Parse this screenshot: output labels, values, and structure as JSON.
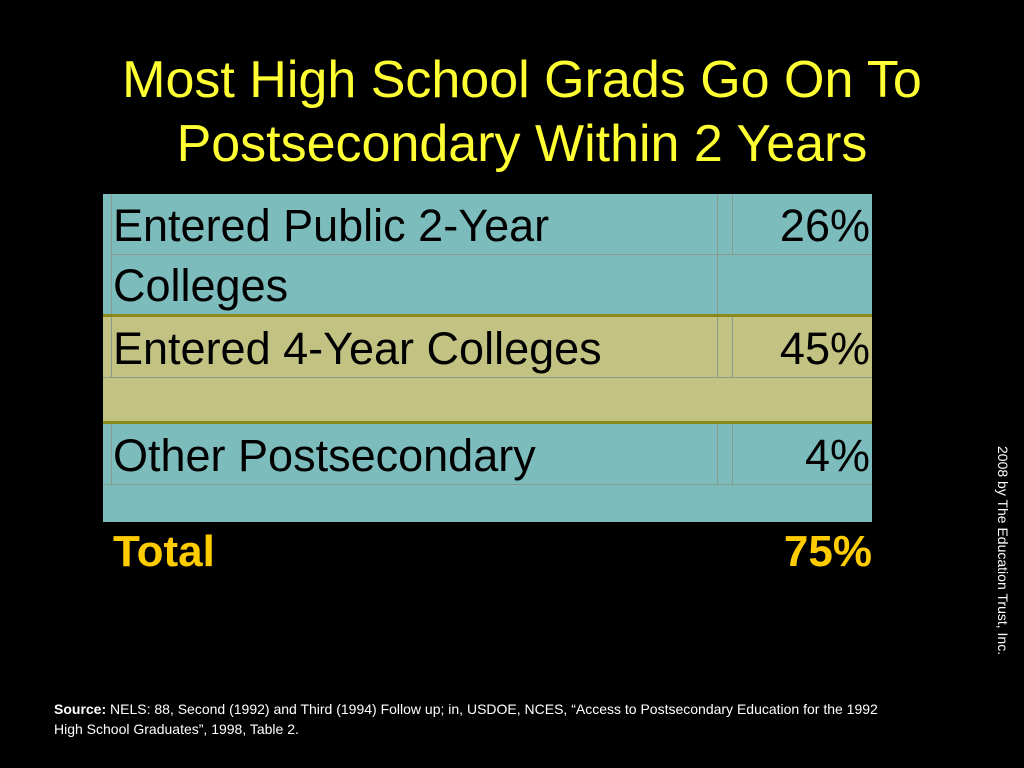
{
  "title": {
    "line1": "Most High School Grads Go On To",
    "line2": "Postsecondary Within 2 Years"
  },
  "table": {
    "rows": [
      {
        "label_line1": "Entered Public 2-Year",
        "label_line2": "Colleges",
        "value": "26%",
        "bg": "#7cbcbc"
      },
      {
        "label": "Entered 4-Year Colleges",
        "value": "45%",
        "bg": "#c2c282"
      },
      {
        "label": "Other Postsecondary",
        "value": "4%",
        "bg": "#7cbcbc"
      }
    ],
    "total": {
      "label": "Total",
      "value": "75%",
      "color": "#ffcc00"
    }
  },
  "copyright": "2008 by The Education Trust, Inc.",
  "source": {
    "label": "Source:",
    "text": " NELS: 88, Second (1992) and Third (1994) Follow up; in, USDOE, NCES, “Access to Postsecondary Education for the 1992 High School Graduates”, 1998, Table 2."
  },
  "colors": {
    "title": "#ffff33",
    "background": "#000000"
  }
}
